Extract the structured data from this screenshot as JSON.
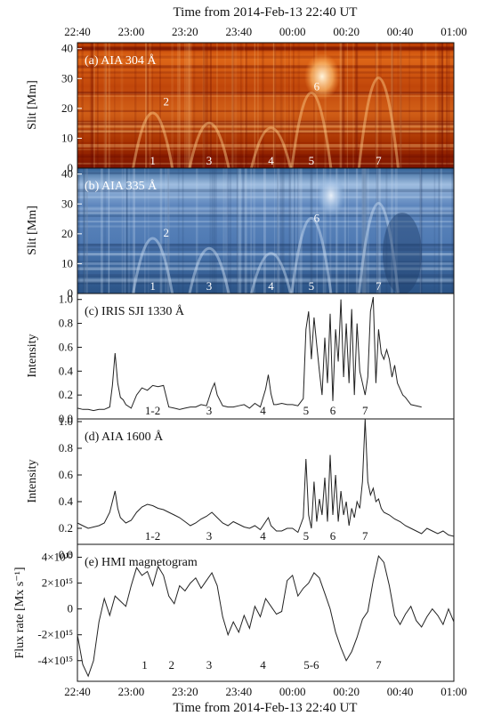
{
  "figure": {
    "top_axis_title": "Time from 2014-Feb-13 22:40 UT",
    "bottom_axis_title": "Time from 2014-Feb-13 22:40 UT",
    "time_ticks": [
      "22:40",
      "23:00",
      "23:20",
      "23:40",
      "00:00",
      "00:20",
      "00:40",
      "01:00"
    ]
  },
  "colors": {
    "aia304_base": "#8a1800",
    "aia304_bright": "#ffd9a0",
    "aia335_base": "#2e5a8c",
    "aia335_bright": "#e2ecf7",
    "curve": "#222222",
    "annotation_light": "#ffffff",
    "annotation_dark": "#111111"
  },
  "chart_data": [
    {
      "type": "heatmap",
      "title": "(a) AIA 304 Å",
      "ylabel": "Slit [Mm]",
      "xlim": [
        0,
        140
      ],
      "ylim": [
        0,
        42
      ],
      "y_ticks": [
        "0",
        "10",
        "20",
        "30",
        "40"
      ],
      "colormap": "red-orange",
      "annotations": [
        {
          "text": "1",
          "x": 28,
          "y": 0
        },
        {
          "text": "2",
          "x": 33,
          "y": 21
        },
        {
          "text": "3",
          "x": 49,
          "y": 0
        },
        {
          "text": "4",
          "x": 72,
          "y": 0
        },
        {
          "text": "5",
          "x": 87,
          "y": 0
        },
        {
          "text": "6",
          "x": 89,
          "y": 26
        },
        {
          "text": "7",
          "x": 112,
          "y": 0
        }
      ]
    },
    {
      "type": "heatmap",
      "title": "(b) AIA 335 Å",
      "ylabel": "Slit [Mm]",
      "xlim": [
        0,
        140
      ],
      "ylim": [
        0,
        42
      ],
      "y_ticks": [
        "0",
        "10",
        "20",
        "30",
        "40"
      ],
      "colormap": "blue",
      "annotations": [
        {
          "text": "1",
          "x": 28,
          "y": 0
        },
        {
          "text": "2",
          "x": 33,
          "y": 19
        },
        {
          "text": "3",
          "x": 49,
          "y": 0
        },
        {
          "text": "4",
          "x": 72,
          "y": 0
        },
        {
          "text": "5",
          "x": 87,
          "y": 0
        },
        {
          "text": "6",
          "x": 89,
          "y": 24
        },
        {
          "text": "7",
          "x": 112,
          "y": 0
        }
      ]
    },
    {
      "type": "line",
      "title": "(c) IRIS SJI 1330 Å",
      "ylabel": "Intensity",
      "xlim": [
        0,
        140
      ],
      "ylim": [
        0,
        1.05
      ],
      "y_ticks": [
        "0.0",
        "0.2",
        "0.4",
        "0.6",
        "0.8",
        "1.0"
      ],
      "x": [
        0,
        2,
        4,
        6,
        8,
        10,
        12,
        13,
        14,
        15,
        16,
        17,
        18,
        20,
        22,
        24,
        26,
        28,
        30,
        32,
        34,
        36,
        38,
        40,
        42,
        44,
        46,
        48,
        50,
        51,
        52,
        54,
        56,
        58,
        60,
        62,
        64,
        66,
        68,
        70,
        71,
        72,
        73,
        74,
        76,
        78,
        80,
        82,
        84,
        85,
        86,
        87,
        88,
        89,
        90,
        91,
        92,
        93,
        94,
        95,
        96,
        97,
        98,
        99,
        100,
        101,
        102,
        103,
        104,
        105,
        106,
        107,
        108,
        109,
        110,
        111,
        112,
        113,
        114,
        115,
        116,
        117,
        118,
        119,
        120,
        121,
        122,
        124,
        126,
        128
      ],
      "values": [
        0.09,
        0.08,
        0.08,
        0.07,
        0.08,
        0.08,
        0.1,
        0.28,
        0.55,
        0.3,
        0.18,
        0.16,
        0.12,
        0.09,
        0.2,
        0.26,
        0.24,
        0.28,
        0.27,
        0.28,
        0.1,
        0.09,
        0.08,
        0.09,
        0.1,
        0.1,
        0.12,
        0.11,
        0.25,
        0.3,
        0.2,
        0.11,
        0.1,
        0.1,
        0.11,
        0.12,
        0.09,
        0.13,
        0.1,
        0.25,
        0.37,
        0.21,
        0.12,
        0.12,
        0.13,
        0.12,
        0.12,
        0.11,
        0.17,
        0.75,
        0.9,
        0.5,
        0.85,
        0.62,
        0.4,
        0.2,
        0.68,
        0.3,
        0.88,
        0.15,
        0.75,
        0.48,
        1.0,
        0.35,
        0.8,
        0.3,
        0.92,
        0.2,
        0.8,
        0.4,
        0.3,
        0.2,
        0.35,
        0.9,
        1.02,
        0.3,
        0.75,
        0.55,
        0.5,
        0.58,
        0.5,
        0.35,
        0.45,
        0.3,
        0.25,
        0.2,
        0.18,
        0.12,
        0.11,
        0.1
      ],
      "annotations": [
        {
          "text": "1-2",
          "x": 28
        },
        {
          "text": "3",
          "x": 49
        },
        {
          "text": "4",
          "x": 69
        },
        {
          "text": "5",
          "x": 85
        },
        {
          "text": "6",
          "x": 95
        },
        {
          "text": "7",
          "x": 107
        }
      ]
    },
    {
      "type": "line",
      "title": "(d) AIA 1600 Å",
      "ylabel": "Intensity",
      "xlim": [
        0,
        140
      ],
      "ylim": [
        0.08,
        1.02
      ],
      "y_ticks": [
        "0.0",
        "0.2",
        "0.4",
        "0.6",
        "0.8",
        "1.0"
      ],
      "x": [
        0,
        2,
        4,
        6,
        8,
        10,
        12,
        13,
        14,
        15,
        16,
        18,
        20,
        22,
        24,
        26,
        28,
        30,
        32,
        34,
        36,
        38,
        40,
        42,
        44,
        46,
        48,
        50,
        52,
        54,
        56,
        58,
        60,
        62,
        64,
        66,
        68,
        70,
        71,
        72,
        74,
        76,
        78,
        80,
        82,
        84,
        85,
        86,
        87,
        88,
        89,
        90,
        91,
        92,
        93,
        94,
        95,
        96,
        97,
        98,
        99,
        100,
        101,
        102,
        103,
        104,
        105,
        106,
        107,
        108,
        109,
        110,
        111,
        112,
        113,
        114,
        116,
        118,
        120,
        122,
        124,
        126,
        128,
        130,
        132,
        134,
        136,
        138,
        140
      ],
      "values": [
        0.24,
        0.22,
        0.2,
        0.21,
        0.22,
        0.24,
        0.32,
        0.4,
        0.48,
        0.35,
        0.28,
        0.24,
        0.26,
        0.32,
        0.36,
        0.38,
        0.37,
        0.35,
        0.34,
        0.32,
        0.3,
        0.28,
        0.25,
        0.22,
        0.24,
        0.27,
        0.29,
        0.32,
        0.28,
        0.24,
        0.22,
        0.25,
        0.23,
        0.21,
        0.2,
        0.22,
        0.19,
        0.25,
        0.28,
        0.22,
        0.18,
        0.18,
        0.2,
        0.2,
        0.17,
        0.28,
        0.72,
        0.3,
        0.2,
        0.55,
        0.25,
        0.42,
        0.3,
        0.58,
        0.25,
        0.75,
        0.3,
        0.6,
        0.25,
        0.48,
        0.3,
        0.4,
        0.22,
        0.35,
        0.28,
        0.4,
        0.35,
        0.55,
        1.02,
        0.55,
        0.45,
        0.5,
        0.4,
        0.42,
        0.35,
        0.32,
        0.3,
        0.27,
        0.25,
        0.22,
        0.2,
        0.18,
        0.16,
        0.2,
        0.18,
        0.16,
        0.18,
        0.15,
        0.14
      ],
      "annotations": [
        {
          "text": "1-2",
          "x": 28
        },
        {
          "text": "3",
          "x": 49
        },
        {
          "text": "4",
          "x": 69
        },
        {
          "text": "5",
          "x": 85
        },
        {
          "text": "6",
          "x": 95
        },
        {
          "text": "7",
          "x": 107
        }
      ]
    },
    {
      "type": "line",
      "title": "(e) HMI magnetogram",
      "ylabel": "Flux rate [Mx s⁻¹]",
      "xlim": [
        0,
        140
      ],
      "ylim": [
        -5600000000000000.0,
        5000000000000000.0
      ],
      "y_ticks": [
        "4×10¹⁵",
        "2×10¹⁵",
        "0",
        "-2×10¹⁵",
        "-4×10¹⁵"
      ],
      "x": [
        0,
        2,
        4,
        6,
        8,
        10,
        12,
        14,
        16,
        18,
        20,
        22,
        24,
        26,
        28,
        30,
        32,
        34,
        36,
        38,
        40,
        42,
        44,
        46,
        48,
        50,
        52,
        54,
        56,
        58,
        60,
        62,
        64,
        66,
        68,
        70,
        72,
        74,
        76,
        78,
        80,
        82,
        84,
        86,
        88,
        90,
        92,
        94,
        96,
        98,
        100,
        102,
        104,
        106,
        108,
        110,
        112,
        114,
        116,
        118,
        120,
        122,
        124,
        126,
        128,
        130,
        132,
        134,
        136,
        138,
        140
      ],
      "values": [
        -2000000000000000.0,
        -4300000000000000.0,
        -5200000000000000.0,
        -4000000000000000.0,
        -1000000000000000.0,
        800000000000000.0,
        -500000000000000.0,
        1000000000000000.0,
        600000000000000.0,
        200000000000000.0,
        1800000000000000.0,
        3200000000000000.0,
        2600000000000000.0,
        2900000000000000.0,
        1800000000000000.0,
        3300000000000000.0,
        2600000000000000.0,
        1000000000000000.0,
        400000000000000.0,
        1800000000000000.0,
        1400000000000000.0,
        2000000000000000.0,
        2400000000000000.0,
        1600000000000000.0,
        2200000000000000.0,
        2800000000000000.0,
        1800000000000000.0,
        -600000000000000.0,
        -2000000000000000.0,
        -1000000000000000.0,
        -1800000000000000.0,
        -500000000000000.0,
        -1500000000000000.0,
        200000000000000.0,
        -600000000000000.0,
        800000000000000.0,
        200000000000000.0,
        -400000000000000.0,
        -200000000000000.0,
        2200000000000000.0,
        2600000000000000.0,
        1000000000000000.0,
        1600000000000000.0,
        2000000000000000.0,
        2800000000000000.0,
        2400000000000000.0,
        1200000000000000.0,
        0.0,
        -1800000000000000.0,
        -3000000000000000.0,
        -4000000000000000.0,
        -3300000000000000.0,
        -2200000000000000.0,
        -800000000000000.0,
        -200000000000000.0,
        2200000000000000.0,
        4100000000000000.0,
        3600000000000000.0,
        1800000000000000.0,
        -500000000000000.0,
        -1200000000000000.0,
        -400000000000000.0,
        200000000000000.0,
        -900000000000000.0,
        -1400000000000000.0,
        -600000000000000.0,
        0.0,
        -500000000000000.0,
        -1200000000000000.0,
        0.0,
        -1000000000000000.0
      ],
      "annotations": [
        {
          "text": "1",
          "x": 25
        },
        {
          "text": "2",
          "x": 35
        },
        {
          "text": "3",
          "x": 49
        },
        {
          "text": "4",
          "x": 69
        },
        {
          "text": "5-6",
          "x": 87
        },
        {
          "text": "7",
          "x": 112
        }
      ]
    }
  ]
}
